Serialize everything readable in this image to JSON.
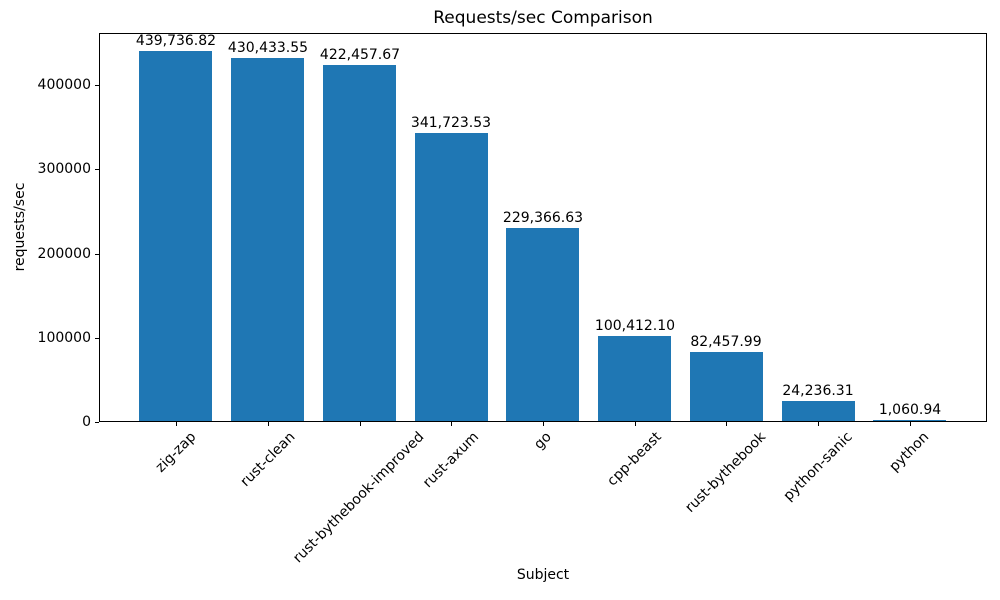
{
  "chart_data": {
    "type": "bar",
    "title": "Requests/sec Comparison",
    "xlabel": "Subject",
    "ylabel": "requests/sec",
    "categories": [
      "zig-zap",
      "rust-clean",
      "rust-bythebook-improved",
      "rust-axum",
      "go",
      "cpp-beast",
      "rust-bythebook",
      "python-sanic",
      "python"
    ],
    "values": [
      439736.82,
      430433.55,
      422457.67,
      341723.53,
      229366.63,
      100412.1,
      82457.99,
      24236.31,
      1060.94
    ],
    "value_labels": [
      "439,736.82",
      "430,433.55",
      "422,457.67",
      "341,723.53",
      "229,366.63",
      "100,412.10",
      "82,457.99",
      "24,236.31",
      "1,060.94"
    ],
    "yticks": [
      0,
      100000,
      200000,
      300000,
      400000
    ],
    "ytick_labels": [
      "0",
      "100000",
      "200000",
      "300000",
      "400000"
    ],
    "ylim": [
      0,
      461724
    ],
    "bar_color": "#1f77b4",
    "grid": false,
    "legend_position": "none",
    "bar_width_fraction": 0.8,
    "x_tick_rotation_deg": 45
  }
}
